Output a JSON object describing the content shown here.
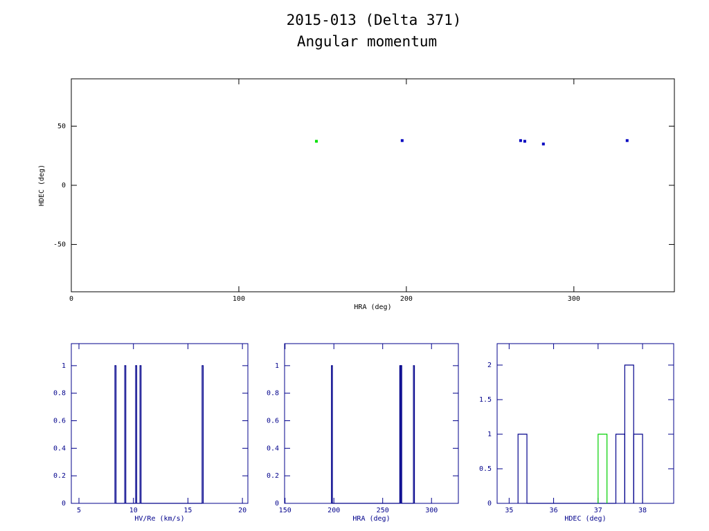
{
  "chart_data": [
    {
      "type": "scatter",
      "title": "2015-013 (Delta 371)",
      "subtitle": "Angular momentum",
      "x_label": "HRA (deg)",
      "y_label": "HDEC (deg)",
      "xlim": [
        0,
        360
      ],
      "ylim": [
        -90,
        90
      ],
      "xticks": [
        0,
        100,
        200,
        300
      ],
      "yticks": [
        -50,
        0,
        50
      ],
      "axis_color": "#000000",
      "series": [
        {
          "color": "#00e000",
          "x": [
            146.3
          ],
          "values": [
            37.2
          ]
        },
        {
          "color": "#0000c0",
          "x": [
            197.5,
            268.2,
            270.7,
            281.8,
            331.8
          ],
          "values": [
            37.8,
            37.8,
            37.2,
            34.9,
            37.8
          ]
        }
      ]
    },
    {
      "type": "histogram",
      "x_label": "HV/Re (km/s)",
      "xlim": [
        4.3,
        20.5
      ],
      "ylim": [
        0,
        1.16
      ],
      "xticks": [
        5,
        10,
        15,
        20
      ],
      "yticks": [
        0,
        0.2,
        0.4,
        0.6,
        0.8,
        1
      ],
      "axis_color": "#00008b",
      "series": [
        {
          "color": "#00008b",
          "bins": [
            8.3,
            8.4,
            9.2,
            9.3,
            10.2,
            10.3,
            10.6,
            10.7,
            16.3,
            16.4
          ],
          "counts": [
            1,
            0,
            1,
            0,
            1,
            0,
            1,
            0,
            1
          ]
        }
      ]
    },
    {
      "type": "histogram",
      "x_label": "HRA (deg)",
      "xlim": [
        149.5,
        327.5
      ],
      "ylim": [
        0,
        1.16
      ],
      "xticks": [
        150,
        200,
        250,
        300
      ],
      "yticks": [
        0,
        0.2,
        0.4,
        0.6,
        0.8,
        1
      ],
      "axis_color": "#00008b",
      "series": [
        {
          "color": "#00008b",
          "bins": [
            197.5,
            198.5,
            267.5,
            268.5,
            269.5,
            281.5,
            282.5
          ],
          "counts": [
            1,
            0,
            1,
            1,
            0,
            1
          ]
        }
      ]
    },
    {
      "type": "histogram",
      "x_label": "HDEC (deg)",
      "xlim": [
        34.73,
        38.7
      ],
      "ylim": [
        0,
        2.31
      ],
      "xticks": [
        35,
        36,
        37,
        38
      ],
      "yticks": [
        0,
        0.5,
        1,
        1.5,
        2
      ],
      "axis_color": "#00008b",
      "series": [
        {
          "color": "#00008b",
          "bins": [
            35.2,
            35.4,
            37.4,
            37.6,
            37.8,
            38.0
          ],
          "counts": [
            1,
            0,
            1,
            2,
            1
          ]
        },
        {
          "color": "#00d000",
          "bins": [
            37.0,
            37.2
          ],
          "counts": [
            1
          ]
        }
      ]
    }
  ]
}
